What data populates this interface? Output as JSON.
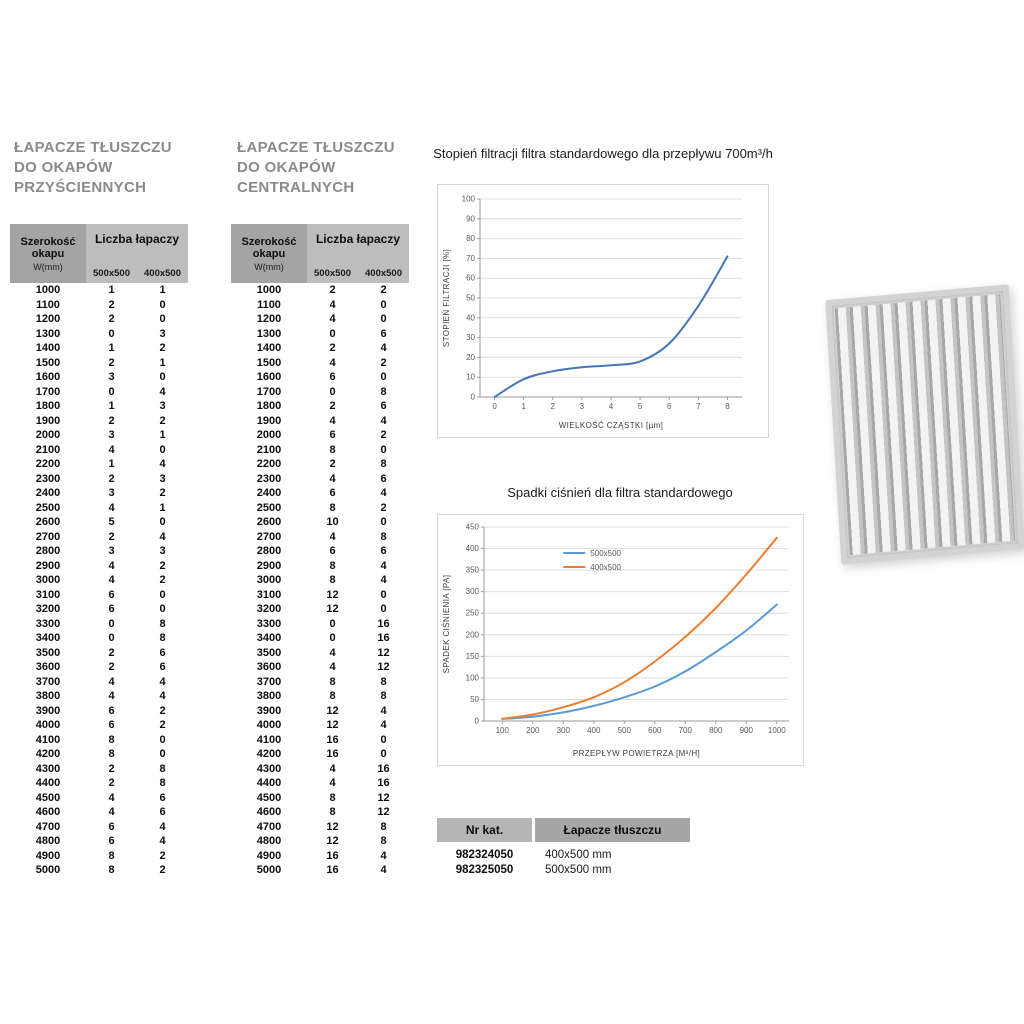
{
  "wall_table": {
    "title_lines": [
      "ŁAPACZE TŁUSZCZU",
      "DO OKAPÓW",
      "PRZYŚCIENNYCH"
    ],
    "header": {
      "width_label": "Szerokość okapu",
      "width_unit": "W(mm)",
      "count_label": "Liczba łapaczy",
      "size_cols": [
        "500x500",
        "400x500"
      ]
    },
    "rows": [
      [
        1000,
        1,
        1
      ],
      [
        1100,
        2,
        0
      ],
      [
        1200,
        2,
        0
      ],
      [
        1300,
        0,
        3
      ],
      [
        1400,
        1,
        2
      ],
      [
        1500,
        2,
        1
      ],
      [
        1600,
        3,
        0
      ],
      [
        1700,
        0,
        4
      ],
      [
        1800,
        1,
        3
      ],
      [
        1900,
        2,
        2
      ],
      [
        2000,
        3,
        1
      ],
      [
        2100,
        4,
        0
      ],
      [
        2200,
        1,
        4
      ],
      [
        2300,
        2,
        3
      ],
      [
        2400,
        3,
        2
      ],
      [
        2500,
        4,
        1
      ],
      [
        2600,
        5,
        0
      ],
      [
        2700,
        2,
        4
      ],
      [
        2800,
        3,
        3
      ],
      [
        2900,
        4,
        2
      ],
      [
        3000,
        4,
        2
      ],
      [
        3100,
        6,
        0
      ],
      [
        3200,
        6,
        0
      ],
      [
        3300,
        0,
        8
      ],
      [
        3400,
        0,
        8
      ],
      [
        3500,
        2,
        6
      ],
      [
        3600,
        2,
        6
      ],
      [
        3700,
        4,
        4
      ],
      [
        3800,
        4,
        4
      ],
      [
        3900,
        6,
        2
      ],
      [
        4000,
        6,
        2
      ],
      [
        4100,
        8,
        0
      ],
      [
        4200,
        8,
        0
      ],
      [
        4300,
        2,
        8
      ],
      [
        4400,
        2,
        8
      ],
      [
        4500,
        4,
        6
      ],
      [
        4600,
        4,
        6
      ],
      [
        4700,
        6,
        4
      ],
      [
        4800,
        6,
        4
      ],
      [
        4900,
        8,
        2
      ],
      [
        5000,
        8,
        2
      ]
    ]
  },
  "central_table": {
    "title_lines": [
      "ŁAPACZE TŁUSZCZU",
      "DO OKAPÓW",
      "CENTRALNYCH"
    ],
    "header": {
      "width_label": "Szerokość okapu",
      "width_unit": "W(mm)",
      "count_label": "Liczba łapaczy",
      "size_cols": [
        "500x500",
        "400x500"
      ]
    },
    "rows": [
      [
        1000,
        2,
        2
      ],
      [
        1100,
        4,
        0
      ],
      [
        1200,
        4,
        0
      ],
      [
        1300,
        0,
        6
      ],
      [
        1400,
        2,
        4
      ],
      [
        1500,
        4,
        2
      ],
      [
        1600,
        6,
        0
      ],
      [
        1700,
        0,
        8
      ],
      [
        1800,
        2,
        6
      ],
      [
        1900,
        4,
        4
      ],
      [
        2000,
        6,
        2
      ],
      [
        2100,
        8,
        0
      ],
      [
        2200,
        2,
        8
      ],
      [
        2300,
        4,
        6
      ],
      [
        2400,
        6,
        4
      ],
      [
        2500,
        8,
        2
      ],
      [
        2600,
        10,
        0
      ],
      [
        2700,
        4,
        8
      ],
      [
        2800,
        6,
        6
      ],
      [
        2900,
        8,
        4
      ],
      [
        3000,
        8,
        4
      ],
      [
        3100,
        12,
        0
      ],
      [
        3200,
        12,
        0
      ],
      [
        3300,
        0,
        16
      ],
      [
        3400,
        0,
        16
      ],
      [
        3500,
        4,
        12
      ],
      [
        3600,
        4,
        12
      ],
      [
        3700,
        8,
        8
      ],
      [
        3800,
        8,
        8
      ],
      [
        3900,
        12,
        4
      ],
      [
        4000,
        12,
        4
      ],
      [
        4100,
        16,
        0
      ],
      [
        4200,
        16,
        0
      ],
      [
        4300,
        4,
        16
      ],
      [
        4400,
        4,
        16
      ],
      [
        4500,
        8,
        12
      ],
      [
        4600,
        8,
        12
      ],
      [
        4700,
        12,
        8
      ],
      [
        4800,
        12,
        8
      ],
      [
        4900,
        16,
        4
      ],
      [
        5000,
        16,
        4
      ]
    ]
  },
  "chart_data": [
    {
      "type": "line",
      "title": "Stopień filtracji filtra standardowego dla przepływu 700m³/h",
      "xlabel": "WIELKOŚĆ CZĄSTKI [µm]",
      "ylabel": "STOPIEŃ FILTRACJI [%]",
      "xlim": [
        -0.5,
        8.5
      ],
      "ylim": [
        0,
        100
      ],
      "x_ticks": [
        0,
        1,
        2,
        3,
        4,
        5,
        6,
        7,
        8
      ],
      "y_ticks": [
        0,
        10,
        20,
        30,
        40,
        50,
        60,
        70,
        80,
        90,
        100
      ],
      "grid": "horizontal",
      "legend": false,
      "series": [
        {
          "name": "stopien-filtracji",
          "color": "#4576b5",
          "x": [
            0,
            1,
            2,
            3,
            4,
            5,
            6,
            7,
            8
          ],
          "y": [
            0,
            9,
            13,
            15,
            16,
            18,
            27,
            46,
            71
          ]
        }
      ]
    },
    {
      "type": "line",
      "title": "Spadki ciśnień dla filtra standardowego",
      "xlabel": "PRZEPŁYW POWIETRZA [M³/H]",
      "ylabel": "SPADEK CIŚNIENIA [PA]",
      "xlim": [
        40,
        1040
      ],
      "ylim": [
        0,
        450
      ],
      "x_ticks": [
        100,
        200,
        300,
        400,
        500,
        600,
        700,
        800,
        900,
        1000
      ],
      "y_ticks": [
        0,
        50,
        100,
        150,
        200,
        250,
        300,
        350,
        400,
        450
      ],
      "grid": "horizontal",
      "legend": true,
      "legend_position": "top-left-inside",
      "series": [
        {
          "name": "500x500",
          "color": "#5b9bd5",
          "x": [
            100,
            200,
            300,
            400,
            500,
            600,
            700,
            800,
            900,
            1000
          ],
          "y": [
            5,
            10,
            20,
            35,
            55,
            80,
            115,
            160,
            210,
            270
          ]
        },
        {
          "name": "400x500",
          "color": "#ed7d31",
          "x": [
            100,
            200,
            300,
            400,
            500,
            600,
            700,
            800,
            900,
            1000
          ],
          "y": [
            5,
            15,
            32,
            55,
            90,
            138,
            195,
            262,
            340,
            425
          ]
        }
      ]
    }
  ],
  "catalog_table": {
    "headers": [
      "Nr kat.",
      "Łapacze tłuszczu"
    ],
    "rows": [
      [
        "982324050",
        "400x500 mm"
      ],
      [
        "982325050",
        "500x500 mm"
      ]
    ]
  }
}
